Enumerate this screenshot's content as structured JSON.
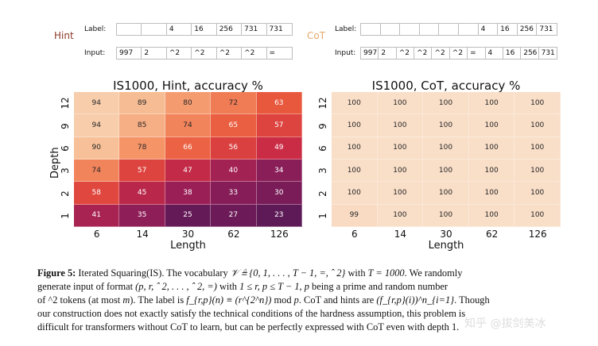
{
  "hint_panel": {
    "tag": "Hint",
    "tag_color": "#8b3a28",
    "label_row_label": "Label:",
    "input_row_label": "Input:",
    "label_tokens": [
      "",
      "",
      "4",
      "16",
      "256",
      "731",
      "731"
    ],
    "input_tokens": [
      "997",
      "2",
      "^2",
      "^2",
      "^2",
      "^2",
      "="
    ]
  },
  "cot_panel": {
    "tag": "CoT",
    "tag_color": "#e6a86a",
    "label_row_label": "Label:",
    "input_row_label": "Input:",
    "label_tokens": [
      "",
      "",
      "",
      "",
      "",
      "",
      "4",
      "16",
      "256",
      "731"
    ],
    "input_tokens": [
      "997",
      "2",
      "^2",
      "^2",
      "^2",
      "^2",
      "=",
      "4",
      "16",
      "256",
      "731"
    ]
  },
  "chart_data": [
    {
      "type": "heatmap",
      "title": "IS1000, Hint, accuracy %",
      "xlabel": "Length",
      "ylabel": "Depth",
      "x": [
        "6",
        "14",
        "30",
        "62",
        "126"
      ],
      "y": [
        "12",
        "9",
        "6",
        "3",
        "2",
        "1"
      ],
      "values": [
        [
          94,
          89,
          80,
          72,
          63
        ],
        [
          94,
          85,
          74,
          65,
          57
        ],
        [
          90,
          78,
          66,
          56,
          49
        ],
        [
          74,
          57,
          47,
          40,
          34
        ],
        [
          58,
          45,
          38,
          33,
          30
        ],
        [
          41,
          35,
          25,
          27,
          23
        ]
      ],
      "colormap": "rocket"
    },
    {
      "type": "heatmap",
      "title": "IS1000, CoT, accuracy %",
      "xlabel": "Length",
      "ylabel": "Depth",
      "x": [
        "6",
        "14",
        "30",
        "62",
        "126"
      ],
      "y": [
        "12",
        "9",
        "6",
        "3",
        "2",
        "1"
      ],
      "values": [
        [
          100,
          100,
          100,
          100,
          100
        ],
        [
          100,
          100,
          100,
          100,
          100
        ],
        [
          100,
          100,
          100,
          100,
          100
        ],
        [
          100,
          100,
          100,
          100,
          100
        ],
        [
          100,
          100,
          100,
          100,
          100
        ],
        [
          99,
          100,
          100,
          100,
          100
        ]
      ],
      "colormap": "rocket"
    }
  ],
  "caption": {
    "fig_label": "Figure 5:",
    "l1a": " Iterated Squaring(IS). The vocabulary ",
    "l1b": " with ",
    "l1c": ". We randomly",
    "l2a": "generate input of format ",
    "l2b": " with ",
    "l2c": ", ",
    "l2d": " being a prime and random number",
    "l3a": "of ^2 tokens (at most ",
    "l3b": "). The label is ",
    "l3c": " mod ",
    "l3d": ". CoT and hints are ",
    "l3e": ". Though",
    "l4": "our construction does not exactly satisfy the technical conditions of the hardness assumption, this problem is",
    "l5": "difficult for transformers without CoT to learn, but can be perfectly expressed with CoT even with depth 1.",
    "m_vocab": "𝒱 ≜ {0, 1, . . . , T − 1, =, ˆ 2}",
    "m_T": "T = 1000",
    "m_format": "(p, r, ˆ 2, . . . , ˆ 2, =)",
    "m_range": "1 ≤ r, p ≤ T − 1",
    "m_p": "p",
    "m_m": "m",
    "m_label": "f_{r,p}(n) ≡ (r^{2^n})",
    "m_p2": "p",
    "m_cot": "(f_{r,p}(i))^n_{i=1}"
  },
  "watermark": "知乎 @拔剑美冰"
}
